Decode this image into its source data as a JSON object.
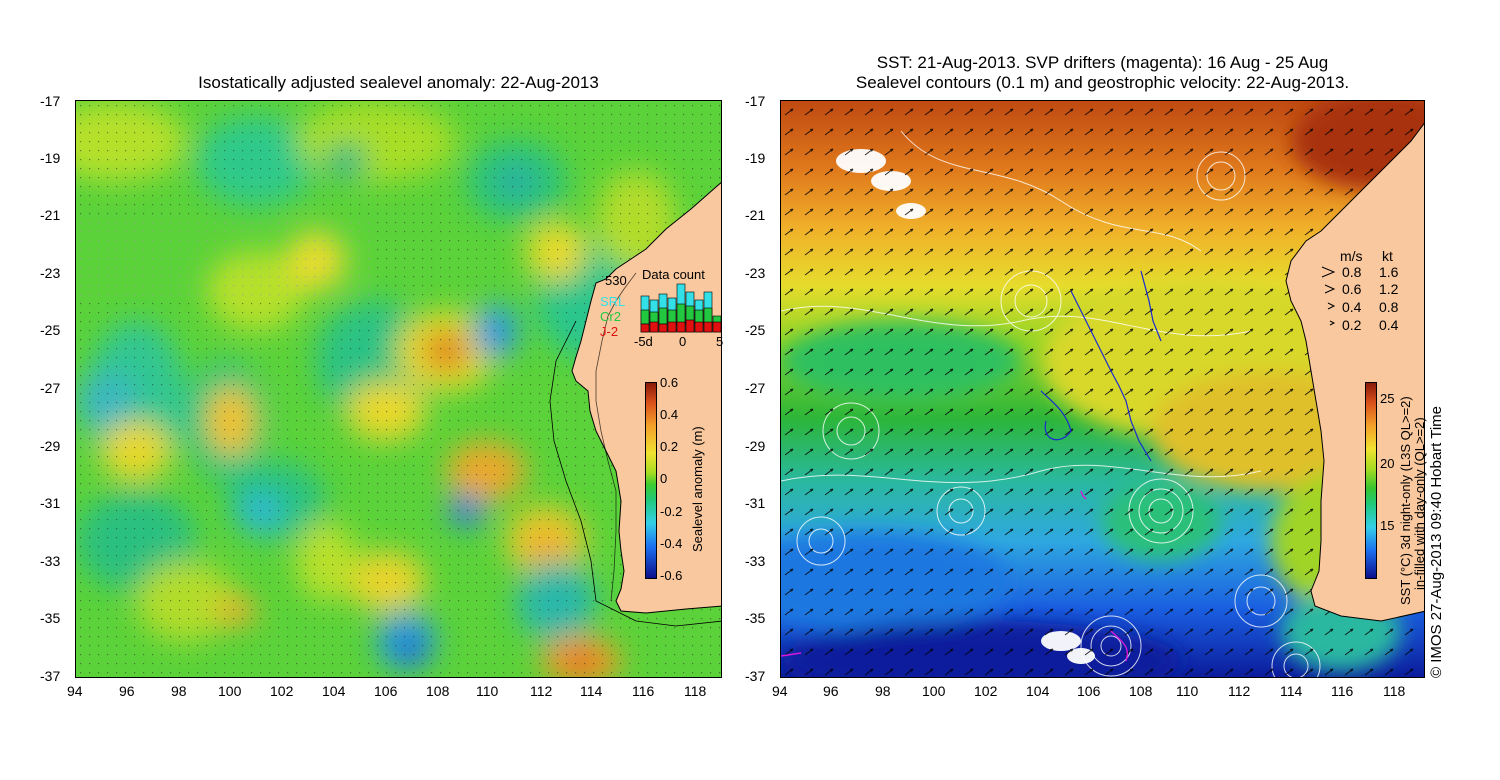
{
  "left": {
    "title": "Isostatically adjusted sealevel anomaly: 22-Aug-2013",
    "colorbar": {
      "label": "Sealevel anomaly (m)",
      "ticks": [
        "0.6",
        "0.4",
        "0.2",
        "0",
        "-0.2",
        "-0.4",
        "-0.6"
      ]
    },
    "data_count": {
      "title": "Data count",
      "max": "530",
      "legend": [
        {
          "label": "SRL",
          "color": "#33e0e8"
        },
        {
          "label": "Cr2",
          "color": "#22c840"
        },
        {
          "label": "J-2",
          "color": "#e01010"
        }
      ],
      "xticks": [
        "-5d",
        "0",
        "5"
      ]
    }
  },
  "right": {
    "title_line1": "SST: 21-Aug-2013. SVP drifters (magenta): 16 Aug - 25 Aug",
    "title_line2": "Sealevel contours (0.1 m) and geostrophic velocity: 22-Aug-2013.",
    "velocity_legend": {
      "header_ms": "m/s",
      "header_kt": "kt",
      "rows": [
        {
          "ms": "0.8",
          "kt": "1.6"
        },
        {
          "ms": "0.6",
          "kt": "1.2"
        },
        {
          "ms": "0.4",
          "kt": "0.8"
        },
        {
          "ms": "0.2",
          "kt": "0.4"
        }
      ]
    },
    "colorbar": {
      "label_line1": "SST (°C) 3d night-only (L3S QL>=2)",
      "label_line2": "in-filled with day-only (QL>=2)",
      "ticks": [
        "25",
        "20",
        "15"
      ]
    },
    "credit": "© IMOS 27-Aug-2013 09:40 Hobart Time"
  },
  "axes": {
    "lat_ticks": [
      "-17",
      "-19",
      "-21",
      "-23",
      "-25",
      "-27",
      "-29",
      "-31",
      "-33",
      "-35",
      "-37"
    ],
    "lon_ticks": [
      "94",
      "96",
      "98",
      "100",
      "102",
      "104",
      "106",
      "108",
      "110",
      "112",
      "114",
      "116",
      "118"
    ]
  },
  "colors": {
    "land": "#f9c89e",
    "sla_colormap": [
      "#0a0f8c",
      "#1b6ff0",
      "#33cfe8",
      "#1fc97a",
      "#3ccc2e",
      "#a6dc22",
      "#f0e230",
      "#f3a12a",
      "#d9501a",
      "#8a1a0a"
    ],
    "sst_colormap": [
      "#0a0f8c",
      "#1b6ff0",
      "#33cfe8",
      "#1fc97a",
      "#38c430",
      "#a6dc22",
      "#f0e230",
      "#f3a12a",
      "#d9501a",
      "#8a1a0a"
    ],
    "drifters": "#d818d8",
    "vectors": "#000000"
  }
}
